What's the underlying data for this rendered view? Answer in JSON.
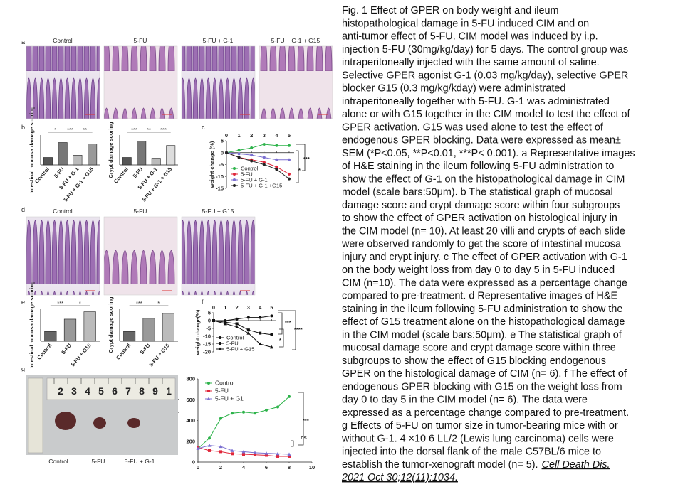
{
  "caption": {
    "lines": [
      "Fig. 1 Effect of GPER on body weight and ileum",
      "histopathological damage in 5-FU induced CIM and on",
      "anti-tumor effect of 5-FU. CIM model was induced by i.p.",
      "injection 5-FU (30mg/kg/day) for 5 days. The control group was",
      "intraperitoneally injected with the same amount of saline.",
      "Selective GPER agonist G-1 (0.03 mg/kg/day), selective GPER",
      "blocker G15 (0.3 mg/kg/kday) were administrated",
      "intraperitoneally together with 5-FU. G-1 was administrated",
      "alone or with G15 together in the CIM model to test the effect of",
      "GPER activation. G15 was used alone to test the effect of",
      "endogenous GPER blocking. Data were expressed as mean±",
      "SEM (*P<0.05, **P<0.01, ***P< 0.001). a Representative images",
      "of H&E staining in the ileum following 5-FU administration to",
      "show the effect of G-1 on the histopathological damage in CIM",
      "model (scale bars:50μm). b The statistical graph of mucosal",
      "damage score and crypt damage score within four subgroups",
      "to show the effect of GPER activation on histological injury in",
      "the CIM model (n= 10). At least 20 villi and crypts of each slide",
      "were observed randomly to get the score of intestinal mucosa",
      "injury and crypt injury. c The effect of GPER activation with G-1",
      "on the body weight loss from day 0 to day 5 in 5-FU induced",
      "CIM (n=10). The data were expressed as a percentage change",
      "compared to pre-treatment. d Representative images of H&E",
      "staining in the ileum following 5-FU administration to show the",
      "effect of G15 treatment alone on the histopathological damage",
      "in the CIM model (scale bars:50μm). e The statistical graph of",
      "mucosal damage score and crypt damage score within three",
      "subgroups to show the effect of G15 blocking endogenous",
      "GPER on the histological damage of CIM (n= 6). f The effect of",
      "endogenous GPER blocking with G15 on the weight loss from",
      "day 0 to day 5 in the CIM model (n= 6). The data were",
      "expressed as a percentage change compared to pre-treatment.",
      "g Effects of 5-FU on tumor size in tumor-bearing mice with or",
      "without G-1. 4 ×10 6 LL/2 (Lewis lung carcinoma) cells were",
      "injected into the dorsal flank of the male C57BL/6 mice to",
      "establish the tumor-xenograft model (n= 5)."
    ],
    "citation": [
      "Cell Death Dis.",
      "2021 Oct 30;12(11):1034."
    ]
  },
  "figure": {
    "panel_labels": [
      "a",
      "b",
      "c",
      "d",
      "e",
      "f",
      "g"
    ],
    "a": {
      "image_labels": [
        "Control",
        "5-FU",
        "5-FU + G-1",
        "5-FU + G-1 + G15"
      ]
    },
    "b": [
      {
        "type": "bar",
        "ylabel": "Intestinal mucosa damage scoring",
        "categories": [
          "Control",
          "5-FU",
          "5-FU + G-1",
          "5-FU + G-1 + G15"
        ],
        "values": [
          1,
          3,
          1.3,
          2.8
        ],
        "colors": [
          "#555555",
          "#777777",
          "#bbbbbb",
          "#999999"
        ],
        "ylim": [
          0,
          4
        ],
        "annotations": [
          "*",
          "***",
          "**"
        ]
      },
      {
        "type": "bar",
        "ylabel": "Crypt damage scoring",
        "categories": [
          "Control",
          "5-FU",
          "5-FU + G-1",
          "5-FU + G-1 + G15"
        ],
        "values": [
          1,
          3.2,
          0.9,
          2.6
        ],
        "colors": [
          "#555555",
          "#777777",
          "#bbbbbb",
          "#dddddd"
        ],
        "ylim": [
          0,
          4
        ],
        "annotations": [
          "***",
          "**",
          "***"
        ]
      }
    ],
    "c": {
      "type": "line",
      "ylabel": "weight change (%)",
      "x": [
        0,
        1,
        2,
        3,
        4,
        5
      ],
      "xlim": [
        0,
        5.4
      ],
      "xticks": [
        0,
        1,
        2,
        3,
        4,
        5
      ],
      "xtick_position": "top",
      "ylim": [
        -15,
        5
      ],
      "yticks": [
        5,
        0,
        -5,
        -10,
        -15
      ],
      "legend": "lower left",
      "series": [
        {
          "name": "Control",
          "color": "#2db34a",
          "marker": "circle",
          "values": [
            0,
            1,
            2,
            3.5,
            3,
            3
          ]
        },
        {
          "name": "5-FU",
          "color": "#e0263a",
          "marker": "circle",
          "values": [
            0,
            -2,
            -3,
            -4,
            -6,
            -9
          ]
        },
        {
          "name": "5-FU + G-1",
          "color": "#7b6fd0",
          "marker": "circle",
          "values": [
            0,
            -0.5,
            -1,
            -2,
            -3,
            -3
          ]
        },
        {
          "name": "5-FU + G-1 +G15",
          "color": "#222222",
          "marker": "circle",
          "values": [
            0,
            -2,
            -3.5,
            -5,
            -7,
            -11
          ]
        }
      ],
      "annotations": [
        "*",
        "***"
      ]
    },
    "d": {
      "image_labels": [
        "Control",
        "5-FU",
        "5-FU + G15"
      ]
    },
    "e": [
      {
        "type": "bar",
        "ylabel": "Intestinal mucosa damage scoring",
        "categories": [
          "Control",
          "5-FU",
          "5-FU + G15"
        ],
        "values": [
          1.2,
          2.7,
          3.6
        ],
        "colors": [
          "#666666",
          "#999999",
          "#bbbbbb"
        ],
        "ylim": [
          0,
          4
        ],
        "annotations": [
          "***",
          "*"
        ]
      },
      {
        "type": "bar",
        "ylabel": "Crypt damage scoring",
        "categories": [
          "Control",
          "5-FU",
          "5-FU + G15"
        ],
        "values": [
          1.2,
          2.8,
          3.4
        ],
        "colors": [
          "#666666",
          "#999999",
          "#bbbbbb"
        ],
        "ylim": [
          0,
          4
        ],
        "annotations": [
          "***",
          "*"
        ]
      }
    ],
    "f": {
      "type": "line",
      "ylabel": "weight change(%)",
      "x": [
        0,
        1,
        2,
        3,
        4,
        5
      ],
      "xlim": [
        0,
        5.4
      ],
      "xticks": [
        0,
        1,
        2,
        3,
        4,
        5
      ],
      "xtick_position": "top",
      "ylim": [
        -20,
        5
      ],
      "yticks": [
        5,
        0,
        -5,
        -10,
        -15,
        -20
      ],
      "legend": "lower left",
      "series": [
        {
          "name": "Control",
          "color": "#111111",
          "marker": "circle",
          "values": [
            0,
            0,
            1,
            2,
            2,
            3
          ]
        },
        {
          "name": "5-FU",
          "color": "#111111",
          "marker": "square",
          "values": [
            0,
            -1,
            -2,
            -6,
            -8,
            -9
          ]
        },
        {
          "name": "5-FU + G15",
          "color": "#111111",
          "marker": "triangle",
          "values": [
            0,
            -2,
            -4,
            -8,
            -15,
            -17
          ]
        }
      ],
      "annotations": [
        "***",
        "*",
        "****"
      ]
    },
    "g": {
      "image_labels": [
        "Control",
        "5-FU",
        "5-FU + G-1"
      ],
      "ruler": [
        "2",
        "3",
        "4",
        "5",
        "6",
        "7",
        "8",
        "9",
        "1"
      ],
      "chart": {
        "type": "line",
        "ylabel": "Tumor size (mm³)",
        "x": [
          0,
          1,
          2,
          3,
          4,
          5,
          6,
          7,
          8
        ],
        "xlim": [
          0,
          10
        ],
        "xticks": [
          0,
          2,
          4,
          6,
          8,
          10
        ],
        "xtick_position": "bottom",
        "ylim": [
          0,
          800
        ],
        "yticks": [
          0,
          200,
          400,
          600,
          800
        ],
        "legend": "upper left",
        "series": [
          {
            "name": "Control",
            "color": "#2db34a",
            "marker": "circle",
            "values": [
              130,
              230,
              420,
              470,
              480,
              470,
              500,
              530,
              630
            ]
          },
          {
            "name": "5-FU",
            "color": "#e0263a",
            "marker": "square",
            "values": [
              140,
              110,
              100,
              80,
              75,
              70,
              65,
              55,
              55
            ]
          },
          {
            "name": "5-FU + G1",
            "color": "#7b6fd0",
            "marker": "triangle",
            "values": [
              130,
              160,
              150,
              110,
              100,
              90,
              85,
              80,
              75
            ]
          }
        ],
        "annotations": [
          "***",
          "ns"
        ]
      }
    }
  }
}
